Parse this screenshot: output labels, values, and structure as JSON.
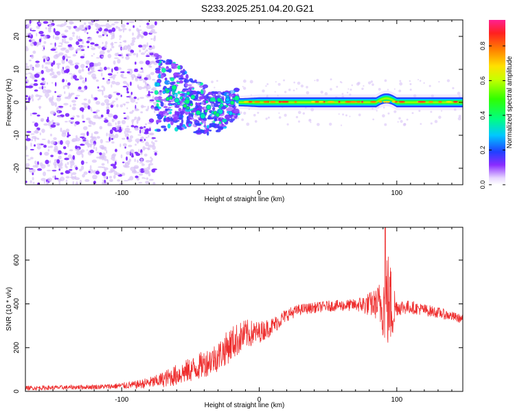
{
  "figure_title": "S233.2025.251.04.20.G21",
  "colors": {
    "snr_line": "#ee2d2d",
    "cmap_purple": "#7a22ff",
    "cmap_light": "#d9c3f7"
  },
  "chart_data": [
    {
      "type": "heatmap",
      "name": "spectrogram",
      "xlabel": "Height of straight line (km)",
      "ylabel": "Frequency (Hz)",
      "xlim": [
        -170,
        148
      ],
      "ylim": [
        -25,
        25
      ],
      "xticks": [
        -100,
        0,
        100
      ],
      "yticks": [
        -20,
        -10,
        0,
        10,
        20
      ],
      "colorbar": {
        "label": "Normalized spectral amplitude",
        "range": [
          0.0,
          0.95
        ],
        "ticks": [
          0.0,
          0.2,
          0.4,
          0.6,
          0.8
        ],
        "tick_labels": [
          "0.0",
          "0.2",
          "0.4",
          "0.6",
          "0.8"
        ],
        "colormap": "rainbow (violet-blue-cyan-green-yellow-red-magenta)"
      },
      "features": {
        "noise_cloud_x_range": [
          -170,
          -75
        ],
        "transition_x_range": [
          -75,
          -15
        ],
        "coherent_band_x_range": [
          -15,
          148
        ],
        "coherent_band_freq_center": 0,
        "coherent_band_half_width_hz": 1.5
      }
    },
    {
      "type": "line",
      "name": "snr",
      "xlabel": "Height of straight line (km)",
      "ylabel": "SNR (10 * v/v)",
      "xlim": [
        -170,
        148
      ],
      "ylim": [
        0,
        750
      ],
      "xticks": [
        -100,
        0,
        100
      ],
      "yticks": [
        0,
        200,
        400,
        600
      ],
      "series": [
        {
          "name": "SNR",
          "x": [
            -170,
            -140,
            -110,
            -90,
            -75,
            -60,
            -45,
            -30,
            -20,
            -10,
            0,
            10,
            20,
            30,
            50,
            70,
            85,
            90,
            93,
            97,
            100,
            110,
            130,
            148
          ],
          "mean": [
            15,
            18,
            22,
            30,
            45,
            75,
            110,
            160,
            220,
            260,
            270,
            300,
            350,
            375,
            390,
            395,
            400,
            395,
            420,
            380,
            385,
            385,
            360,
            330
          ],
          "spread": [
            10,
            10,
            12,
            18,
            30,
            50,
            60,
            70,
            80,
            70,
            50,
            40,
            30,
            25,
            25,
            28,
            70,
            150,
            250,
            160,
            40,
            30,
            25,
            20
          ]
        }
      ]
    }
  ]
}
